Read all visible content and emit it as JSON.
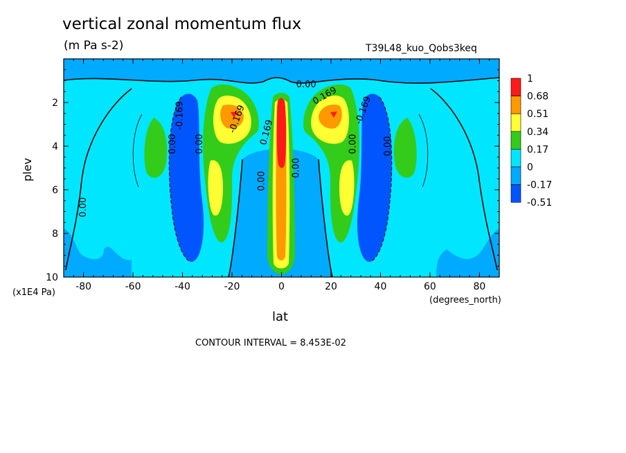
{
  "chart_data": {
    "type": "contour",
    "title": "vertical zonal momentum flux",
    "units": "(m Pa s-2)",
    "run_id": "T39L48_kuo_Qobs3keq",
    "xlabel": "lat",
    "x_units": "(degrees_north)",
    "ylabel": "plev",
    "y_units": "(x1E4 Pa)",
    "contour_interval_text": "CONTOUR INTERVAL = 8.453E-02",
    "xlim": [
      -88,
      88
    ],
    "ylim": [
      10,
      0
    ],
    "x_ticks": [
      -80,
      -60,
      -40,
      -20,
      0,
      20,
      40,
      60,
      80
    ],
    "x_tick_labels": [
      "-80",
      "-60",
      "-40",
      "-20",
      "0",
      "20",
      "40",
      "60",
      "80"
    ],
    "y_ticks": [
      2,
      4,
      6,
      8,
      10
    ],
    "y_tick_labels": [
      "2",
      "4",
      "6",
      "8",
      "10"
    ],
    "legend": {
      "levels": [
        "1",
        "0.68",
        "0.51",
        "0.34",
        "0.17",
        "0",
        "-0.17",
        "-0.51"
      ],
      "colors": [
        "#ff1a1a",
        "#ff9900",
        "#ffff33",
        "#33cc1a",
        "#00e6ff",
        "#00aaff",
        "#0055ff"
      ]
    },
    "contour_labels": [
      {
        "text": "0.00",
        "x": -79,
        "y": 6.8,
        "rot": -90
      },
      {
        "text": "0.00",
        "x": -43,
        "y": 3.9,
        "rot": -90
      },
      {
        "text": "-0.169",
        "x": -40,
        "y": 2.6,
        "rot": -90
      },
      {
        "text": "0.00",
        "x": -32,
        "y": 3.9,
        "rot": -90
      },
      {
        "text": "-0.169",
        "x": -17,
        "y": 2.8,
        "rot": -70
      },
      {
        "text": "0.00",
        "x": -7,
        "y": 5.6,
        "rot": -90
      },
      {
        "text": "0.169",
        "x": -5,
        "y": 3.4,
        "rot": -75
      },
      {
        "text": "0.00",
        "x": 7,
        "y": 5.0,
        "rot": -90
      },
      {
        "text": "0.00",
        "x": 10,
        "y": 1.3,
        "rot": 0
      },
      {
        "text": "0.169",
        "x": 18,
        "y": 1.8,
        "rot": -30
      },
      {
        "text": "-0.169",
        "x": 34,
        "y": 2.4,
        "rot": -70
      },
      {
        "text": "0.00",
        "x": 30,
        "y": 3.9,
        "rot": -90
      },
      {
        "text": "0.00",
        "x": 44,
        "y": 4.0,
        "rot": -90
      }
    ]
  }
}
